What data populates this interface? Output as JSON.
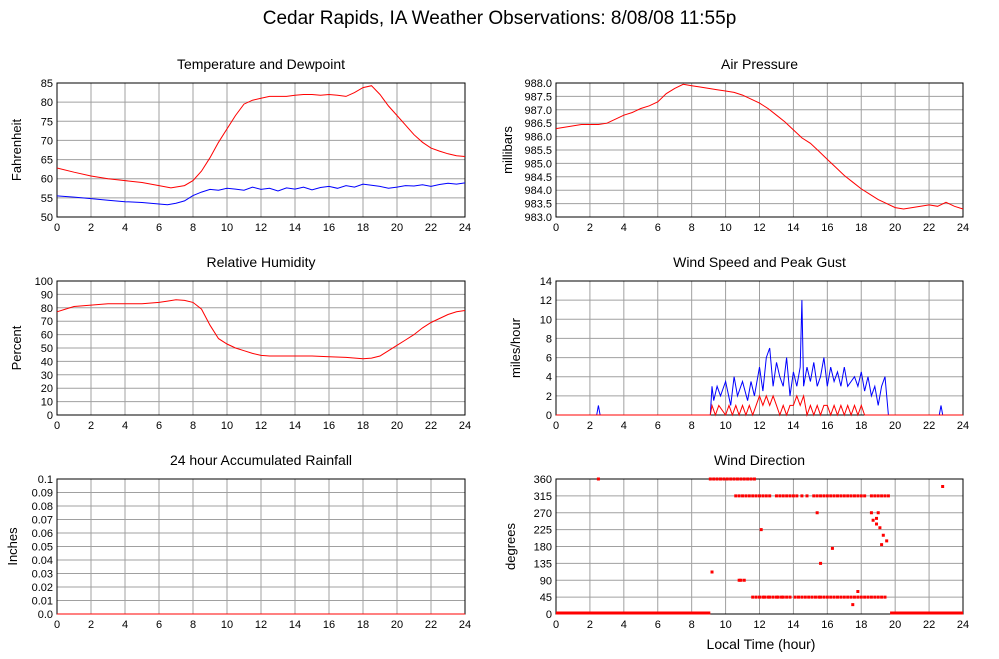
{
  "title": "Cedar Rapids, IA Weather Observations: 8/08/08 11:55p",
  "xlabel_global": "Local Time (hour)",
  "colors": {
    "red": "#ff0000",
    "blue": "#0000ff",
    "grid": "#a0a0a0"
  },
  "chart_data": [
    {
      "id": "temp",
      "type": "line",
      "title": "Temperature and Dewpoint",
      "xlabel": "",
      "ylabel": "Fahrenheit",
      "xlim": [
        0,
        24
      ],
      "ylim": [
        50,
        85
      ],
      "yticks": [
        50,
        55,
        60,
        65,
        70,
        75,
        80,
        85
      ],
      "ytick_decimals": 0,
      "series": [
        {
          "color": "#ff0000",
          "x": [
            0,
            1,
            2,
            3,
            4,
            5,
            6,
            6.7,
            7.5,
            8,
            8.5,
            9,
            9.5,
            10,
            10.5,
            11,
            11.5,
            12,
            12.5,
            13,
            13.5,
            14,
            14.5,
            15,
            15.5,
            16,
            16.5,
            17,
            17.5,
            18,
            18.5,
            19,
            19.5,
            20,
            20.5,
            21,
            21.5,
            22,
            22.5,
            23,
            23.5,
            24
          ],
          "values": [
            62.8,
            61.7,
            60.7,
            60.0,
            59.5,
            59.0,
            58.2,
            57.6,
            58.2,
            59.5,
            62.0,
            65.5,
            69.5,
            73.0,
            76.5,
            79.5,
            80.5,
            81.0,
            81.5,
            81.5,
            81.5,
            81.8,
            82.0,
            82.0,
            81.8,
            82.0,
            81.8,
            81.5,
            82.5,
            83.8,
            84.3,
            82.0,
            79.0,
            76.5,
            74.0,
            71.5,
            69.5,
            68.0,
            67.2,
            66.5,
            66.0,
            65.8
          ]
        },
        {
          "color": "#0000ff",
          "x": [
            0,
            1,
            2,
            3,
            4,
            5,
            6,
            6.5,
            7,
            7.5,
            8,
            8.5,
            9,
            9.5,
            10,
            10.5,
            11,
            11.5,
            12,
            12.5,
            13,
            13.5,
            14,
            14.5,
            15,
            15.5,
            16,
            16.5,
            17,
            17.5,
            18,
            18.5,
            19,
            19.5,
            20,
            20.5,
            21,
            21.5,
            22,
            22.5,
            23,
            23.5,
            24
          ],
          "values": [
            55.5,
            55.2,
            54.8,
            54.4,
            54.0,
            53.8,
            53.4,
            53.2,
            53.6,
            54.2,
            55.6,
            56.5,
            57.2,
            57.0,
            57.5,
            57.3,
            57.0,
            57.8,
            57.2,
            57.5,
            56.8,
            57.6,
            57.3,
            57.8,
            57.1,
            57.7,
            58.0,
            57.5,
            58.2,
            57.8,
            58.6,
            58.3,
            58.0,
            57.5,
            57.8,
            58.2,
            58.1,
            58.4,
            58.0,
            58.5,
            58.8,
            58.6,
            58.9
          ]
        }
      ]
    },
    {
      "id": "pres",
      "type": "line",
      "title": "Air Pressure",
      "xlabel": "",
      "ylabel": "millibars",
      "xlim": [
        0,
        24
      ],
      "ylim": [
        983.0,
        988.0
      ],
      "yticks": [
        983.0,
        983.5,
        984.0,
        984.5,
        985.0,
        985.5,
        986.0,
        986.5,
        987.0,
        987.5,
        988.0
      ],
      "ytick_decimals": 1,
      "series": [
        {
          "color": "#ff0000",
          "x": [
            0,
            0.5,
            1,
            1.5,
            2,
            2.5,
            3,
            3.5,
            4,
            4.5,
            5,
            5.5,
            6,
            6.5,
            7,
            7.5,
            8,
            8.5,
            9,
            9.5,
            10,
            10.5,
            11,
            11.5,
            12,
            12.5,
            13,
            13.5,
            14,
            14.5,
            15,
            15.5,
            16,
            16.5,
            17,
            17.5,
            18,
            18.5,
            19,
            19.5,
            20,
            20.5,
            21,
            21.5,
            22,
            22.5,
            23,
            23.5,
            24
          ],
          "values": [
            986.3,
            986.35,
            986.4,
            986.45,
            986.45,
            986.45,
            986.5,
            986.65,
            986.8,
            986.9,
            987.05,
            987.15,
            987.3,
            987.6,
            987.8,
            987.95,
            987.9,
            987.85,
            987.8,
            987.75,
            987.7,
            987.65,
            987.55,
            987.4,
            987.25,
            987.05,
            986.8,
            986.55,
            986.25,
            985.95,
            985.75,
            985.45,
            985.15,
            984.85,
            984.55,
            984.3,
            984.05,
            983.85,
            983.65,
            983.5,
            983.35,
            983.3,
            983.35,
            983.4,
            983.45,
            983.4,
            983.55,
            983.4,
            983.3
          ]
        }
      ]
    },
    {
      "id": "rh",
      "type": "line",
      "title": "Relative Humidity",
      "xlabel": "",
      "ylabel": "Percent",
      "xlim": [
        0,
        24
      ],
      "ylim": [
        0,
        100
      ],
      "yticks": [
        0,
        10,
        20,
        30,
        40,
        50,
        60,
        70,
        80,
        90,
        100
      ],
      "ytick_decimals": 0,
      "series": [
        {
          "color": "#ff0000",
          "x": [
            0,
            0.5,
            1,
            2,
            3,
            4,
            5,
            6,
            6.5,
            7,
            7.5,
            8,
            8.5,
            9,
            9.5,
            10,
            10.5,
            11,
            11.5,
            12,
            12.5,
            13,
            14,
            15,
            16,
            17,
            18,
            18.5,
            19,
            19.5,
            20,
            20.5,
            21,
            21.5,
            22,
            22.5,
            23,
            23.5,
            24
          ],
          "values": [
            77,
            79,
            81,
            82,
            83,
            83,
            83,
            84,
            85,
            86,
            85.5,
            84,
            79,
            67,
            57,
            53,
            50,
            48,
            46,
            44.5,
            44,
            44,
            44,
            44,
            43.5,
            43,
            42,
            42.5,
            44,
            48,
            52,
            56,
            60,
            65,
            69,
            72,
            75,
            77,
            78
          ]
        }
      ]
    },
    {
      "id": "wind",
      "type": "line",
      "title": "Wind Speed and Peak Gust",
      "xlabel": "",
      "ylabel": "miles/hour",
      "xlim": [
        0,
        24
      ],
      "ylim": [
        0,
        14
      ],
      "yticks": [
        0,
        2,
        4,
        6,
        8,
        10,
        12,
        14
      ],
      "ytick_decimals": 0,
      "series": [
        {
          "color": "#0000ff",
          "x": [
            0,
            2.4,
            2.5,
            2.6,
            9.1,
            9.2,
            9.3,
            9.5,
            9.7,
            10,
            10.3,
            10.5,
            10.7,
            11,
            11.3,
            11.5,
            11.7,
            12,
            12.2,
            12.4,
            12.6,
            12.8,
            13,
            13.2,
            13.4,
            13.6,
            13.8,
            14,
            14.2,
            14.4,
            14.5,
            14.6,
            14.8,
            15,
            15.2,
            15.4,
            15.6,
            15.8,
            16,
            16.2,
            16.4,
            16.6,
            16.8,
            17,
            17.2,
            17.4,
            17.6,
            17.8,
            18,
            18.2,
            18.4,
            18.6,
            18.8,
            19,
            19.2,
            19.4,
            19.6,
            22.6,
            22.7,
            22.8,
            24
          ],
          "values": [
            0,
            0,
            1,
            0,
            0,
            3,
            1.5,
            3,
            2,
            3.5,
            1,
            4,
            2,
            3.5,
            1.5,
            3.5,
            2,
            5,
            2.5,
            6,
            7,
            3,
            5.5,
            4,
            3,
            6,
            2,
            4.5,
            3,
            5,
            12,
            3,
            5,
            3.5,
            5.5,
            3,
            4,
            6,
            3,
            5,
            3.5,
            4.5,
            3,
            5,
            3,
            3.5,
            4,
            3,
            4.5,
            2.5,
            4,
            2,
            3,
            1,
            3,
            4,
            0,
            0,
            1,
            0,
            0
          ]
        },
        {
          "color": "#ff0000",
          "x": [
            0,
            9.1,
            9.2,
            9.4,
            9.6,
            10,
            10.2,
            10.4,
            10.6,
            10.8,
            11,
            11.2,
            11.4,
            11.6,
            11.8,
            12,
            12.2,
            12.4,
            12.6,
            12.8,
            13,
            13.2,
            13.4,
            13.6,
            13.8,
            14,
            14.2,
            14.4,
            14.6,
            14.8,
            15,
            15.2,
            15.4,
            15.6,
            15.8,
            16,
            16.2,
            16.4,
            16.6,
            16.8,
            17,
            17.2,
            17.4,
            17.6,
            17.8,
            18,
            18.2,
            19.6,
            24
          ],
          "values": [
            0,
            0,
            1,
            0,
            1,
            0,
            1,
            0,
            1,
            0,
            1,
            0,
            1,
            0,
            1,
            2,
            1,
            2,
            1,
            2,
            1,
            0,
            1,
            0,
            1,
            1,
            2,
            1,
            2,
            0,
            1,
            0,
            1,
            0,
            1,
            1,
            0,
            1,
            0,
            1,
            0,
            1,
            0,
            1,
            0,
            1,
            0,
            0,
            0
          ]
        }
      ]
    },
    {
      "id": "rain",
      "type": "line",
      "title": "24 hour Accumulated Rainfall",
      "xlabel": "",
      "ylabel": "Inches",
      "xlim": [
        0,
        24
      ],
      "ylim": [
        0,
        0.1
      ],
      "yticks": [
        0.0,
        0.01,
        0.02,
        0.03,
        0.04,
        0.05,
        0.06,
        0.07,
        0.08,
        0.09,
        0.1
      ],
      "ytick_labels": [
        "0.0",
        "0.01",
        "0.02",
        "0.03",
        "0.04",
        "0.05",
        "0.06",
        "0.07",
        "0.08",
        "0.09",
        "0.1"
      ],
      "series": [
        {
          "color": "#ff0000",
          "x": [
            0,
            24
          ],
          "values": [
            0,
            0
          ]
        }
      ]
    },
    {
      "id": "dir",
      "type": "scatter",
      "title": "Wind Direction",
      "xlabel": "",
      "ylabel": "degrees",
      "xlim": [
        0,
        24
      ],
      "ylim": [
        0,
        360
      ],
      "yticks": [
        0,
        45,
        90,
        135,
        180,
        225,
        270,
        315,
        360
      ],
      "ytick_decimals": 0,
      "calm_segments": [
        [
          0,
          9.1
        ],
        [
          19.7,
          24
        ]
      ],
      "series": [
        {
          "color": "#ff0000",
          "x": [
            2.5,
            9.1,
            9.3,
            9.5,
            9.7,
            9.9,
            10.1,
            10.3,
            10.5,
            10.7,
            10.9,
            11.1,
            11.3,
            11.5,
            11.7,
            9.2,
            10.8,
            10.9,
            11.1,
            11.6,
            11.8,
            12.0,
            12.2,
            12.3,
            12.5,
            12.6,
            12.8,
            13.0,
            13.1,
            13.3,
            13.4,
            13.6,
            13.8,
            14.1,
            14.3,
            14.5,
            14.7,
            14.9,
            15.1,
            15.3,
            15.5,
            15.6,
            15.8,
            16.0,
            16.2,
            16.4,
            16.6,
            16.8,
            17.0,
            17.2,
            17.4,
            17.6,
            17.8,
            18.0,
            18.2,
            18.4,
            18.6,
            18.8,
            19.0,
            19.2,
            19.4,
            10.6,
            10.8,
            11.0,
            11.2,
            11.4,
            11.6,
            11.8,
            12.0,
            12.2,
            12.4,
            12.6,
            13.0,
            13.2,
            13.4,
            13.6,
            13.8,
            14.0,
            14.2,
            14.5,
            14.8,
            15.2,
            15.4,
            15.6,
            15.8,
            16.0,
            16.2,
            16.4,
            16.6,
            16.8,
            17.0,
            17.2,
            17.4,
            17.6,
            17.8,
            18.0,
            18.2,
            18.6,
            18.8,
            19.0,
            19.2,
            19.4,
            19.6,
            18.6,
            18.7,
            18.9,
            19.1,
            19.3,
            19.5,
            19.2,
            19.0,
            18.9,
            22.8,
            12.1,
            15.6,
            16.3,
            17.5,
            17.8,
            15.4
          ],
          "values": [
            360,
            360,
            360,
            360,
            360,
            360,
            360,
            360,
            360,
            360,
            360,
            360,
            360,
            360,
            360,
            112,
            90,
            90,
            90,
            45,
            45,
            45,
            45,
            45,
            45,
            45,
            45,
            45,
            45,
            45,
            45,
            45,
            45,
            45,
            45,
            45,
            45,
            45,
            45,
            45,
            45,
            45,
            45,
            45,
            45,
            45,
            45,
            45,
            45,
            45,
            45,
            45,
            45,
            45,
            45,
            45,
            45,
            45,
            45,
            45,
            45,
            315,
            315,
            315,
            315,
            315,
            315,
            315,
            315,
            315,
            315,
            315,
            315,
            315,
            315,
            315,
            315,
            315,
            315,
            315,
            315,
            315,
            315,
            315,
            315,
            315,
            315,
            315,
            315,
            315,
            315,
            315,
            315,
            315,
            315,
            315,
            315,
            315,
            315,
            315,
            315,
            315,
            315,
            270,
            250,
            240,
            230,
            210,
            195,
            185,
            270,
            255,
            340,
            225,
            135,
            175,
            25,
            60,
            270
          ]
        }
      ]
    }
  ]
}
